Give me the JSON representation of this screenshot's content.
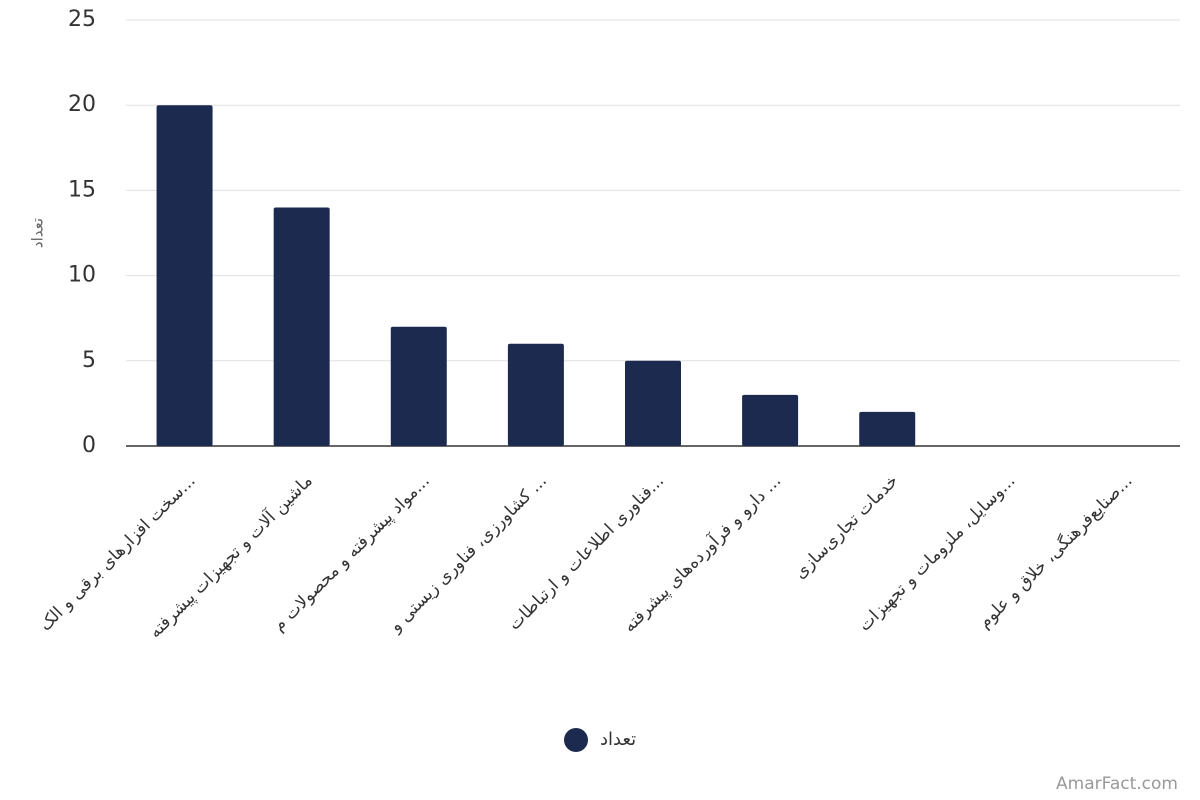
{
  "chart_data": {
    "type": "bar",
    "ylabel": "تعداد",
    "categories": [
      "سخت افزارهای برقی و الک...",
      "ماشین آلات و تجهیزات پیشرفته",
      "مواد پیشرفته و محصولات م...",
      "کشاورزی، فناوری زیستی و ...",
      "فناوری اطلاعات و ارتباطات...",
      "دارو و فرآورده‌های پیشرفته ...",
      "خدمات تجاری‌سازی",
      "وسایل، ملزومات و تجهیزات...",
      "صنایع‌فرهنگی، خلاق و علوم..."
    ],
    "series": [
      {
        "name": "تعداد",
        "color": "#1b2a4e",
        "values": [
          20,
          14,
          7,
          6,
          5,
          3,
          2,
          0,
          0
        ]
      }
    ],
    "ylim": [
      0,
      25
    ],
    "yticks": [
      0,
      5,
      10,
      15,
      20,
      25
    ],
    "grid": true,
    "watermark": "AmarFact.com"
  }
}
